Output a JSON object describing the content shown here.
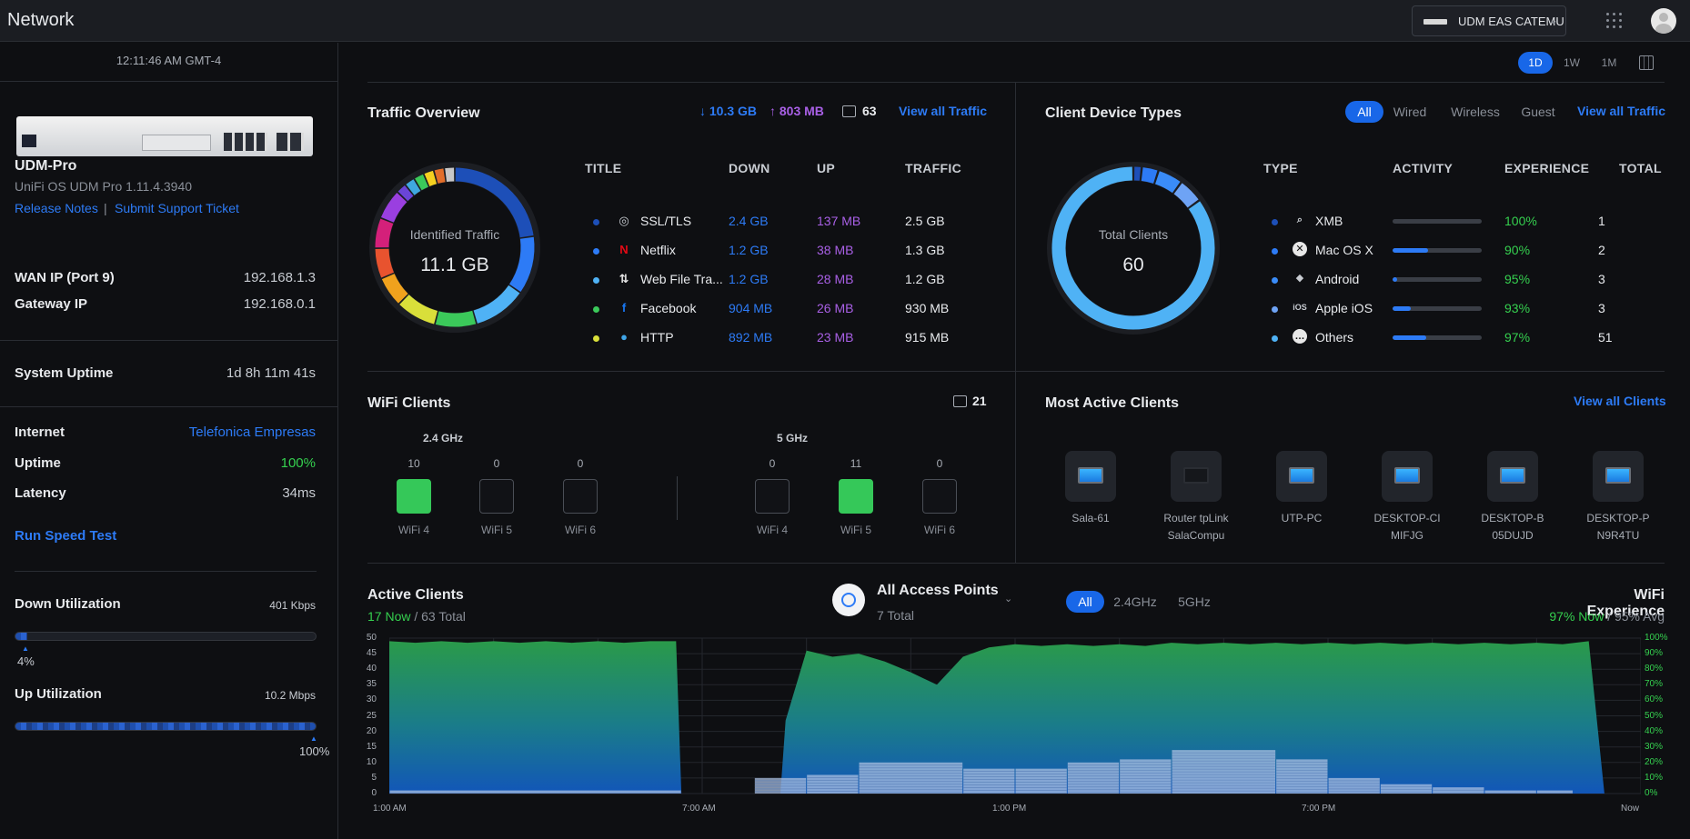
{
  "app": {
    "title": "Network"
  },
  "device_select": {
    "label": "UDM EAS CATEMU"
  },
  "sidebar": {
    "time": "12:11:46 AM GMT-4",
    "device_name": "UDM-Pro",
    "device_os": "UniFi OS UDM Pro 1.11.4.3940",
    "release_notes": "Release Notes",
    "separator": "|",
    "support": "Submit Support Ticket",
    "wan_label": "WAN IP (Port 9)",
    "wan_value": "192.168.1.3",
    "gateway_label": "Gateway IP",
    "gateway_value": "192.168.0.1",
    "uptime_label": "System Uptime",
    "uptime_value": "1d 8h 11m 41s",
    "internet_label": "Internet",
    "internet_value": "Telefonica Empresas",
    "isp_uptime_label": "Uptime",
    "isp_uptime_value": "100%",
    "latency_label": "Latency",
    "latency_value": "34ms",
    "speed_test": "Run Speed Test",
    "down_label": "Down Utilization",
    "down_value": "401 Kbps",
    "down_pct": "4%",
    "down_pct_num": 4,
    "up_label": "Up Utilization",
    "up_value": "10.2 Mbps",
    "up_pct": "100%",
    "up_pct_num": 100
  },
  "range": {
    "options": [
      "1D",
      "1W",
      "1M"
    ],
    "selected": "1D"
  },
  "traffic": {
    "title": "Traffic Overview",
    "down_total": "10.3 GB",
    "up_total": "803 MB",
    "clients": "63",
    "view_all": "View all Traffic",
    "donut_label": "Identified Traffic",
    "donut_value": "11.1 GB",
    "headers": [
      "TITLE",
      "DOWN",
      "UP",
      "TRAFFIC"
    ],
    "rows": [
      {
        "title": "SSL/TLS",
        "down": "2.4 GB",
        "up": "137 MB",
        "traffic": "2.5 GB",
        "color": "#1d4fb8",
        "icon": "globe-icon"
      },
      {
        "title": "Netflix",
        "down": "1.2 GB",
        "up": "38 MB",
        "traffic": "1.3 GB",
        "color": "#2d7bf6",
        "icon": "netflix-icon"
      },
      {
        "title": "Web File Tra...",
        "down": "1.2 GB",
        "up": "28 MB",
        "traffic": "1.2 GB",
        "color": "#4fb2f5",
        "icon": "file-transfer-icon"
      },
      {
        "title": "Facebook",
        "down": "904 MB",
        "up": "26 MB",
        "traffic": "930 MB",
        "color": "#3bc95a",
        "icon": "facebook-icon"
      },
      {
        "title": "HTTP",
        "down": "892 MB",
        "up": "23 MB",
        "traffic": "915 MB",
        "color": "#d9df3a",
        "icon": "web-icon"
      }
    ]
  },
  "client_types": {
    "title": "Client Device Types",
    "filters": [
      "All",
      "Wired",
      "Wireless",
      "Guest"
    ],
    "selected": "All",
    "view_all": "View all Traffic",
    "donut_label": "Total Clients",
    "donut_value": "60",
    "headers": [
      "TYPE",
      "ACTIVITY",
      "EXPERIENCE",
      "TOTAL"
    ],
    "rows": [
      {
        "type": "XMB",
        "activity": 0,
        "experience": "100%",
        "total": "1",
        "color": "#1d4fb8",
        "icon": "xmb-icon"
      },
      {
        "type": "Mac OS X",
        "activity": 40,
        "experience": "90%",
        "total": "2",
        "color": "#2d7bf6",
        "icon": "apple-icon"
      },
      {
        "type": "Android",
        "activity": 5,
        "experience": "95%",
        "total": "3",
        "color": "#3a8cf8",
        "icon": "android-icon"
      },
      {
        "type": "Apple iOS",
        "activity": 20,
        "experience": "93%",
        "total": "3",
        "color": "#6ea3f5",
        "icon": "ios-icon"
      },
      {
        "type": "Others",
        "activity": 38,
        "experience": "97%",
        "total": "51",
        "color": "#4fb2f5",
        "icon": "others-icon"
      }
    ]
  },
  "wifi": {
    "title": "WiFi Clients",
    "count": "21",
    "bands": [
      {
        "name": "2.4 GHz",
        "items": [
          {
            "label": "WiFi 4",
            "count": "10",
            "active": true
          },
          {
            "label": "WiFi 5",
            "count": "0",
            "active": false
          },
          {
            "label": "WiFi 6",
            "count": "0",
            "active": false
          }
        ]
      },
      {
        "name": "5 GHz",
        "items": [
          {
            "label": "WiFi 4",
            "count": "0",
            "active": false
          },
          {
            "label": "WiFi 5",
            "count": "11",
            "active": true
          },
          {
            "label": "WiFi 6",
            "count": "0",
            "active": false
          }
        ]
      }
    ]
  },
  "most_active": {
    "title": "Most Active Clients",
    "view_all": "View all Clients",
    "clients": [
      {
        "line1": "Sala-61",
        "line2": "",
        "icon": "monitor-icon"
      },
      {
        "line1": "Router tpLink",
        "line2": "SalaCompu",
        "icon": "router-icon"
      },
      {
        "line1": "UTP-PC",
        "line2": "",
        "icon": "desktop-icon"
      },
      {
        "line1": "DESKTOP-CI",
        "line2": "MIFJG",
        "icon": "desktop-icon"
      },
      {
        "line1": "DESKTOP-B",
        "line2": "05DUJD",
        "icon": "desktop-icon"
      },
      {
        "line1": "DESKTOP-P",
        "line2": "N9R4TU",
        "icon": "monitor-icon"
      }
    ]
  },
  "active_clients": {
    "title": "Active Clients",
    "now": "17 Now",
    "sep": "/",
    "total": "63 Total",
    "ap_name": "All Access Points",
    "ap_total": "7 Total",
    "filters": [
      "All",
      "2.4GHz",
      "5GHz"
    ],
    "selected": "All",
    "wifi_exp_title": "WiFi Experience",
    "wifi_now": "97% Now",
    "wifi_avg": "95% Avg"
  },
  "chart_data": {
    "type": "area",
    "x_ticks": [
      "1:00 AM",
      "7:00 AM",
      "1:00 PM",
      "7:00 PM",
      "Now"
    ],
    "y_ticks": [
      "50",
      "45",
      "40",
      "35",
      "30",
      "25",
      "20",
      "15",
      "10",
      "5",
      "0"
    ],
    "y2_ticks": [
      "100%",
      "90%",
      "80%",
      "70%",
      "60%",
      "50%",
      "40%",
      "30%",
      "20%",
      "10%",
      "0%"
    ],
    "ylim": [
      0,
      50
    ],
    "hours": [
      0,
      0.5,
      1,
      1.5,
      2,
      2.5,
      3,
      3.5,
      4,
      4.5,
      5,
      5.5,
      5.6,
      6,
      6.5,
      7,
      7.5,
      7.6,
      8,
      8.5,
      9,
      9.5,
      10,
      10.5,
      11,
      11.5,
      12,
      12.5,
      13,
      13.5,
      14,
      14.5,
      15,
      15.5,
      16,
      16.5,
      17,
      17.5,
      18,
      18.5,
      19,
      19.5,
      20,
      20.5,
      21,
      21.5,
      22,
      22.5,
      23,
      23.3,
      23.5,
      24
    ],
    "experience_pct": [
      98,
      97,
      98,
      97,
      98,
      97,
      98,
      97,
      98,
      97,
      98,
      98,
      0,
      0,
      0,
      0,
      0,
      47,
      92,
      88,
      90,
      85,
      78,
      70,
      88,
      94,
      96,
      95,
      96,
      95,
      96,
      95,
      97,
      96,
      97,
      96,
      97,
      96,
      97,
      96,
      97,
      96,
      97,
      96,
      97,
      96,
      97,
      96,
      98,
      0,
      0,
      0
    ],
    "clients_bars": [
      {
        "start": 0,
        "end": 5.6,
        "value": 1
      },
      {
        "start": 7.0,
        "end": 8.0,
        "value": 5
      },
      {
        "start": 8.0,
        "end": 9.0,
        "value": 6
      },
      {
        "start": 9.0,
        "end": 11.0,
        "value": 10
      },
      {
        "start": 11.0,
        "end": 12.0,
        "value": 8
      },
      {
        "start": 12.0,
        "end": 13.0,
        "value": 8
      },
      {
        "start": 13.0,
        "end": 14.0,
        "value": 10
      },
      {
        "start": 14.0,
        "end": 15.0,
        "value": 11
      },
      {
        "start": 15.0,
        "end": 17.0,
        "value": 14
      },
      {
        "start": 17.0,
        "end": 18.0,
        "value": 11
      },
      {
        "start": 18.0,
        "end": 19.0,
        "value": 5
      },
      {
        "start": 19.0,
        "end": 20.0,
        "value": 3
      },
      {
        "start": 20.0,
        "end": 21.0,
        "value": 2
      },
      {
        "start": 21.0,
        "end": 22.0,
        "value": 1
      },
      {
        "start": 22.0,
        "end": 22.7,
        "value": 1
      }
    ],
    "colors": {
      "green": "#2a9a4a",
      "blue": "#1256b8",
      "bar": "#a9bfe0"
    }
  }
}
